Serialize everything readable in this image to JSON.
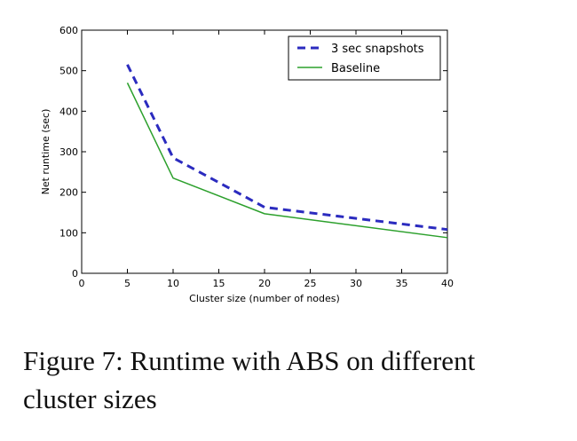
{
  "chart_data": {
    "type": "line",
    "title": "",
    "xlabel": "Cluster size (number of nodes)",
    "ylabel": "Net runtime (sec)",
    "xlim": [
      0,
      40
    ],
    "ylim": [
      0,
      600
    ],
    "xticks": [
      0,
      5,
      10,
      15,
      20,
      25,
      30,
      35,
      40
    ],
    "yticks": [
      0,
      100,
      200,
      300,
      400,
      500,
      600
    ],
    "grid": false,
    "legend_position": "top-right",
    "series": [
      {
        "name": "3 sec snapshots",
        "color": "#2b2bbf",
        "style": "dashed",
        "x": [
          5,
          10,
          20,
          40
        ],
        "y": [
          515,
          285,
          163,
          108
        ]
      },
      {
        "name": "Baseline",
        "color": "#2ca02c",
        "style": "solid",
        "x": [
          5,
          10,
          20,
          40
        ],
        "y": [
          470,
          235,
          147,
          88
        ]
      }
    ]
  },
  "caption": "Figure 7: Runtime with ABS on different cluster sizes"
}
